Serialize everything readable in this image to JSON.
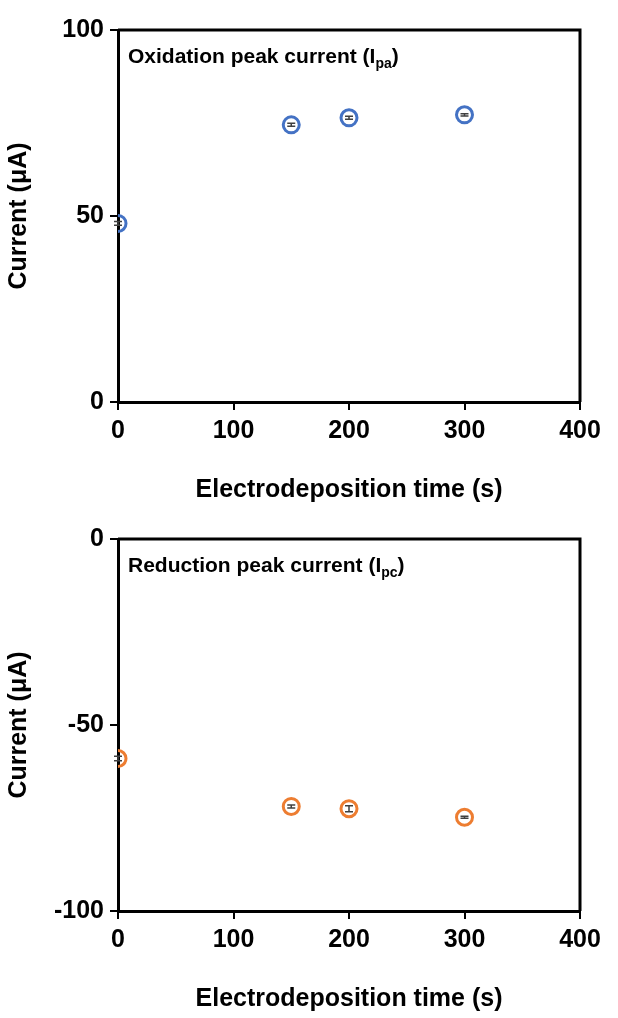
{
  "chart_data": [
    {
      "type": "scatter",
      "title": "Oxidation peak current (I$_{pa}$)",
      "xlabel": "Electrodeposition time (s)",
      "ylabel": "Current (μA)",
      "xlim": [
        0,
        400
      ],
      "xticks": [
        0,
        100,
        200,
        300,
        400
      ],
      "ylim": [
        0,
        100
      ],
      "yticks": [
        0,
        50,
        100
      ],
      "grid": false,
      "legend": false,
      "marker": "circle",
      "series": [
        {
          "color": "#4472c4",
          "x": [
            0,
            150,
            200,
            300
          ],
          "values": [
            48.0,
            74.5,
            76.4,
            77.2
          ],
          "errors": [
            0.5,
            0.4,
            0.4,
            0.3
          ]
        }
      ]
    },
    {
      "type": "scatter",
      "title": "Reduction peak current (I$_{pc}$)",
      "xlabel": "Electrodeposition time (s)",
      "ylabel": "Current (μA)",
      "xlim": [
        0,
        400
      ],
      "xticks": [
        0,
        100,
        200,
        300,
        400
      ],
      "ylim": [
        -100,
        0
      ],
      "yticks": [
        -100,
        -50,
        0
      ],
      "grid": false,
      "legend": false,
      "marker": "circle",
      "series": [
        {
          "color": "#ed7d31",
          "x": [
            0,
            150,
            200,
            300
          ],
          "values": [
            -59.0,
            -71.9,
            -72.5,
            -74.8
          ],
          "errors": [
            0.6,
            0.4,
            0.8,
            0.3
          ]
        }
      ]
    }
  ]
}
